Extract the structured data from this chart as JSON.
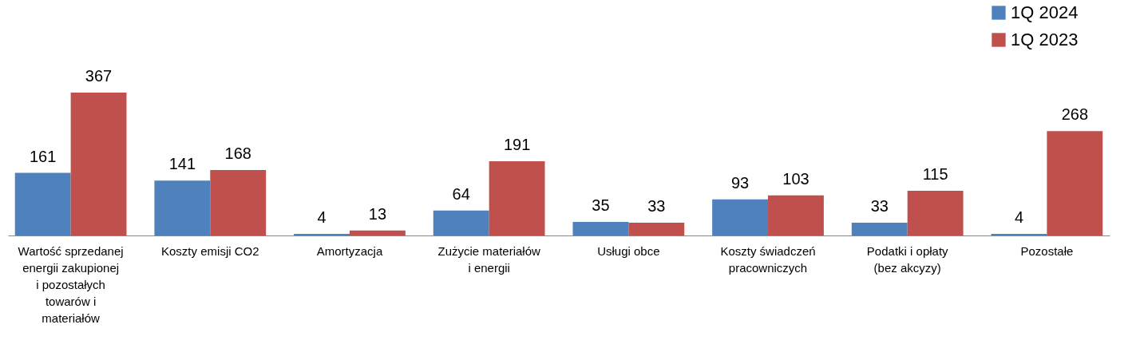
{
  "chart_data": {
    "type": "bar",
    "categories": [
      "Wartość sprzedanej energii zakupionej i pozostałych towarów i materiałów",
      "Koszty emisji CO2",
      "Amortyzacja",
      "Zużycie materiałów i energii",
      "Usługi obce",
      "Koszty świadczeń pracowniczych",
      "Podatki i opłaty (bez akcyzy)",
      "Pozostałe"
    ],
    "series": [
      {
        "name": "1Q 2024",
        "color": "#4f81bd",
        "values": [
          161,
          141,
          4,
          64,
          35,
          93,
          33,
          4
        ]
      },
      {
        "name": "1Q 2023",
        "color": "#c0504d",
        "values": [
          367,
          168,
          13,
          191,
          33,
          103,
          115,
          268
        ]
      }
    ],
    "data_labels": true,
    "legend": "top right"
  }
}
